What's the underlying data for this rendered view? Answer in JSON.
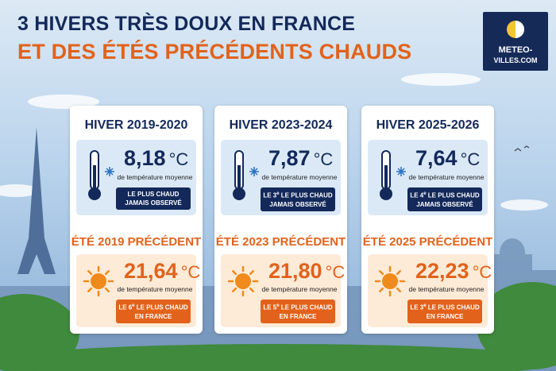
{
  "header": {
    "title_line1": "3 HIVERS TRÈS DOUX EN FRANCE",
    "title_line2": "ET DES ÉTÉS PRÉCÉDENTS CHAUDS"
  },
  "logo": {
    "line1": "METEO-",
    "line2": "VILLES.COM"
  },
  "cards": [
    {
      "winter": {
        "title": "HIVER 2019-2020",
        "value": "8,18",
        "unit": "°C",
        "caption": "de température moyenne",
        "badge": {
          "line1": "LE PLUS CHAUD",
          "line2": "JAMAIS OBSERVÉ"
        }
      },
      "summer": {
        "title": "ÉTÉ 2019 PRÉCÉDENT",
        "value": "21,64",
        "unit": "°C",
        "caption": "de température moyenne",
        "badge": {
          "prefix": "LE 6",
          "sup": "e",
          "line1": "LE PLUS CHAUD",
          "line2": "EN FRANCE"
        }
      }
    },
    {
      "winter": {
        "title": "HIVER 2023-2024",
        "value": "7,87",
        "unit": "°C",
        "caption": "de température moyenne",
        "badge": {
          "prefix": "LE 3",
          "sup": "e",
          "line1": "LE PLUS CHAUD",
          "line2": "JAMAIS OBSERVÉ"
        }
      },
      "summer": {
        "title": "ÉTÉ 2023 PRÉCÉDENT",
        "value": "21,80",
        "unit": "°C",
        "caption": "de température moyenne",
        "badge": {
          "prefix": "LE 5",
          "sup": "e",
          "line1": "LE PLUS CHAUD",
          "line2": "EN FRANCE"
        }
      }
    },
    {
      "winter": {
        "title": "HIVER 2025-2026",
        "value": "7,64",
        "unit": "°C",
        "caption": "de température moyenne",
        "badge": {
          "prefix": "LE 4",
          "sup": "e",
          "line1": "LE PLUS CHAUD",
          "line2": "JAMAIS OBSERVÉ"
        }
      },
      "summer": {
        "title": "ÉTÉ 2025 PRÉCÉDENT",
        "value": "22,23",
        "unit": "°C",
        "caption": "de température moyenne",
        "badge": {
          "prefix": "LE 3",
          "sup": "e",
          "line1": "LE PLUS CHAUD",
          "line2": "EN FRANCE"
        }
      }
    }
  ]
}
